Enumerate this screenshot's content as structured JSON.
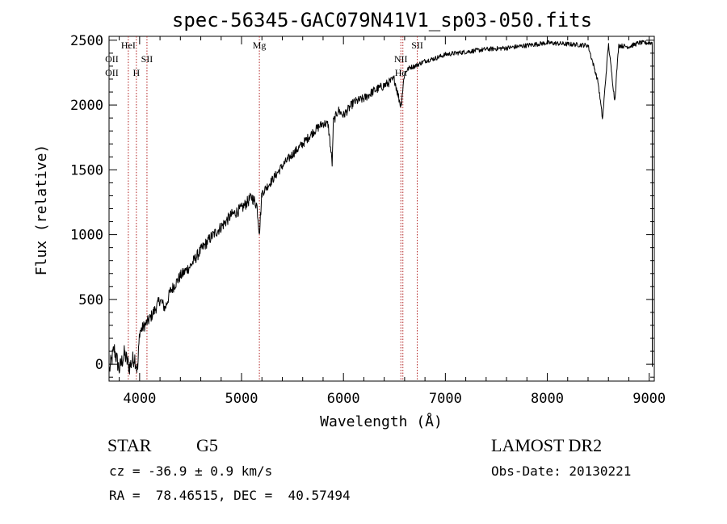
{
  "chart_data": {
    "type": "line",
    "title": "spec-56345-GAC079N41V1_sp03-050.fits",
    "xlabel": "Wavelength (Å)",
    "ylabel": "Flux (relative)",
    "xlim": [
      3700,
      9050
    ],
    "ylim": [
      -130,
      2530
    ],
    "x_ticks": [
      4000,
      5000,
      6000,
      7000,
      8000,
      9000
    ],
    "x_tick_labels": [
      "4000",
      "5000",
      "6000",
      "7000",
      "8000",
      "9000"
    ],
    "y_ticks": [
      0,
      500,
      1000,
      1500,
      2000,
      2500
    ],
    "y_tick_labels": [
      "0",
      "500",
      "1000",
      "1500",
      "2000",
      "2500"
    ],
    "grid": false,
    "series": [
      {
        "name": "spectrum",
        "x": [
          3700,
          3750,
          3800,
          3850,
          3900,
          3950,
          3980,
          4000,
          4050,
          4100,
          4150,
          4200,
          4250,
          4300,
          4350,
          4400,
          4450,
          4500,
          4600,
          4700,
          4800,
          4900,
          5000,
          5100,
          5150,
          5175,
          5200,
          5300,
          5400,
          5500,
          5600,
          5700,
          5800,
          5850,
          5890,
          5900,
          5950,
          6000,
          6100,
          6200,
          6300,
          6400,
          6500,
          6563,
          6600,
          6650,
          6700,
          6800,
          6900,
          7000,
          7200,
          7400,
          7600,
          7800,
          8000,
          8200,
          8400,
          8498,
          8542,
          8600,
          8662,
          8700,
          8800,
          8900,
          9000
        ],
        "values": [
          -60,
          120,
          -40,
          80,
          -20,
          60,
          -50,
          250,
          300,
          350,
          420,
          500,
          430,
          560,
          620,
          680,
          720,
          760,
          880,
          980,
          1060,
          1150,
          1200,
          1290,
          1230,
          1020,
          1320,
          1420,
          1530,
          1620,
          1700,
          1790,
          1860,
          1850,
          1540,
          1870,
          1960,
          1920,
          2020,
          2050,
          2110,
          2150,
          2200,
          1990,
          2250,
          2290,
          2300,
          2340,
          2360,
          2390,
          2410,
          2430,
          2440,
          2460,
          2480,
          2470,
          2460,
          2180,
          1890,
          2470,
          2030,
          2460,
          2450,
          2480,
          2480
        ]
      }
    ],
    "line_labels": [
      {
        "x": 3727,
        "row1": "OII",
        "row2": "OII",
        "hl_row1": false,
        "hl_row2": false,
        "show_line": false
      },
      {
        "x": 3889,
        "row0": "HeI",
        "show_line": true
      },
      {
        "x": 3968,
        "row2": "H",
        "show_line": true
      },
      {
        "x": 4072,
        "row1": "SII",
        "show_line": true
      },
      {
        "x": 5175,
        "row0": "Mg",
        "show_line": true
      },
      {
        "x": 6563,
        "row1": "NII",
        "row2": "Hα",
        "show_line": true
      },
      {
        "x": 6583,
        "show_line": true
      },
      {
        "x": 6724,
        "row0": "SII",
        "show_line": true
      }
    ]
  },
  "info": {
    "class_label": "STAR",
    "subclass": "G5",
    "survey": "LAMOST DR2",
    "cz": "cz = -36.9 ± 0.9 km/s",
    "obs_date": "Obs-Date: 20130221",
    "coords": "RA =  78.46515, DEC =  40.57494"
  },
  "colors": {
    "line_marker": "#b22222",
    "spectrum": "#000000",
    "axis": "#000000"
  }
}
